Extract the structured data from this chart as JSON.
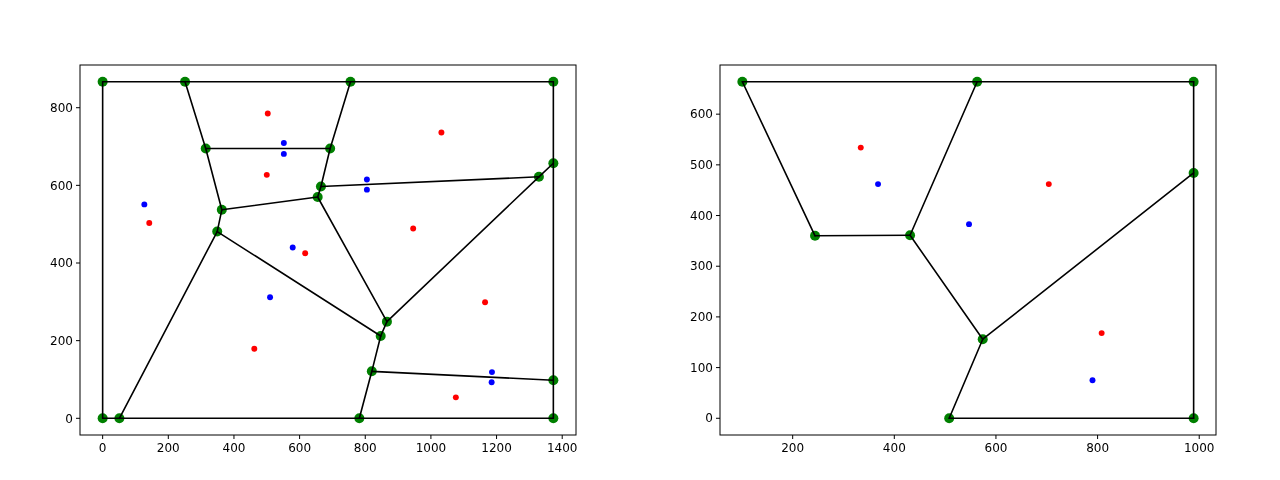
{
  "chart_data": [
    {
      "type": "scatter",
      "xlim": [
        -69,
        1442
      ],
      "ylim": [
        -43,
        910
      ],
      "xticks": [
        0,
        200,
        400,
        600,
        800,
        1000,
        1200,
        1400
      ],
      "yticks": [
        0,
        200,
        400,
        600,
        800
      ],
      "grid": false,
      "series": [
        {
          "marker": "circle",
          "color": "#008000",
          "x": [
            0,
            251,
            755,
            1373,
            314,
            693,
            1373,
            1329,
            665,
            655,
            363,
            349,
            866,
            847,
            820,
            1373,
            0,
            51,
            782,
            1373
          ],
          "values": [
            867,
            867,
            867,
            867,
            695,
            695,
            657,
            622,
            597,
            570,
            537,
            481,
            249,
            212,
            121,
            98,
            0,
            0,
            0,
            0
          ],
          "sizes": [
            1,
            1,
            1,
            1,
            1,
            1,
            1,
            1,
            1,
            1,
            1,
            1,
            1,
            1,
            1,
            1,
            1,
            1,
            1,
            1
          ]
        },
        {
          "type": "line",
          "color": "#000000",
          "x": [
            0,
            1373
          ],
          "values": [
            867,
            867
          ]
        },
        {
          "type": "line",
          "color": "#000000",
          "x": [
            0,
            0
          ],
          "values": [
            867,
            0
          ]
        },
        {
          "type": "line",
          "color": "#000000",
          "x": [
            1373,
            1373
          ],
          "values": [
            867,
            0
          ]
        },
        {
          "type": "line",
          "color": "#000000",
          "x": [
            0,
            1373
          ],
          "values": [
            0,
            0
          ]
        },
        {
          "type": "line",
          "color": "#000000",
          "x": [
            251,
            314
          ],
          "values": [
            867,
            695
          ]
        },
        {
          "type": "line",
          "color": "#000000",
          "x": [
            314,
            363
          ],
          "values": [
            695,
            537
          ]
        },
        {
          "type": "line",
          "color": "#000000",
          "x": [
            314,
            693
          ],
          "values": [
            695,
            695
          ]
        },
        {
          "type": "line",
          "color": "#000000",
          "x": [
            755,
            693
          ],
          "values": [
            867,
            695
          ]
        },
        {
          "type": "line",
          "color": "#000000",
          "x": [
            693,
            665
          ],
          "values": [
            695,
            597
          ]
        },
        {
          "type": "line",
          "color": "#000000",
          "x": [
            665,
            655
          ],
          "values": [
            597,
            570
          ]
        },
        {
          "type": "line",
          "color": "#000000",
          "x": [
            665,
            1329
          ],
          "values": [
            597,
            622
          ]
        },
        {
          "type": "line",
          "color": "#000000",
          "x": [
            866,
            1329
          ],
          "values": [
            249,
            622
          ]
        },
        {
          "type": "line",
          "color": "#000000",
          "x": [
            1329,
            1373
          ],
          "values": [
            622,
            657
          ]
        },
        {
          "type": "line",
          "color": "#000000",
          "x": [
            655,
            363
          ],
          "values": [
            570,
            537
          ]
        },
        {
          "type": "line",
          "color": "#000000",
          "x": [
            363,
            349
          ],
          "values": [
            537,
            481
          ]
        },
        {
          "type": "line",
          "color": "#000000",
          "x": [
            655,
            866
          ],
          "values": [
            570,
            249
          ]
        },
        {
          "type": "line",
          "color": "#000000",
          "x": [
            349,
            847
          ],
          "values": [
            481,
            212
          ]
        },
        {
          "type": "line",
          "color": "#000000",
          "x": [
            349,
            51
          ],
          "values": [
            481,
            0
          ]
        },
        {
          "type": "line",
          "color": "#000000",
          "x": [
            866,
            847
          ],
          "values": [
            249,
            212
          ]
        },
        {
          "type": "line",
          "color": "#000000",
          "x": [
            847,
            820
          ],
          "values": [
            212,
            121
          ]
        },
        {
          "type": "line",
          "color": "#000000",
          "x": [
            820,
            782
          ],
          "values": [
            121,
            0
          ]
        },
        {
          "type": "line",
          "color": "#000000",
          "x": [
            820,
            1373
          ],
          "values": [
            121,
            98
          ]
        },
        {
          "marker": "circle",
          "color": "#ff0000",
          "x": [
            503,
            500,
            142,
            617,
            1032,
            946,
            1165,
            462,
            1076
          ],
          "values": [
            785,
            627,
            503,
            425,
            736,
            489,
            299,
            179,
            54
          ],
          "sizes": [
            0.35,
            0.35,
            0.35,
            0.35,
            0.35,
            0.35,
            0.35,
            0.35,
            0.35
          ]
        },
        {
          "marker": "circle",
          "color": "#0000ff",
          "x": [
            552,
            552,
            805,
            805,
            127,
            579,
            510,
            1186,
            1185
          ],
          "values": [
            709,
            681,
            615,
            589,
            551,
            440,
            312,
            119,
            93
          ],
          "sizes": [
            0.35,
            0.35,
            0.35,
            0.35,
            0.35,
            0.35,
            0.35,
            0.35,
            0.35
          ]
        }
      ]
    },
    {
      "type": "scatter",
      "xlim": [
        57,
        1033
      ],
      "ylim": [
        -33,
        697
      ],
      "xticks": [
        200,
        400,
        600,
        800,
        1000
      ],
      "yticks": [
        0,
        100,
        200,
        300,
        400,
        500,
        600
      ],
      "grid": false,
      "series": [
        {
          "marker": "circle",
          "color": "#008000",
          "x": [
            101,
            563,
            989,
            989,
            244,
            431,
            574,
            508,
            989
          ],
          "values": [
            664,
            664,
            664,
            484,
            360,
            361,
            156,
            0,
            0
          ],
          "sizes": [
            1,
            1,
            1,
            1,
            1,
            1,
            1,
            1,
            1
          ]
        },
        {
          "type": "line",
          "color": "#000000",
          "x": [
            101,
            989
          ],
          "values": [
            664,
            664
          ]
        },
        {
          "type": "line",
          "color": "#000000",
          "x": [
            989,
            989
          ],
          "values": [
            664,
            0
          ]
        },
        {
          "type": "line",
          "color": "#000000",
          "x": [
            508,
            989
          ],
          "values": [
            0,
            0
          ]
        },
        {
          "type": "line",
          "color": "#000000",
          "x": [
            101,
            244
          ],
          "values": [
            664,
            360
          ]
        },
        {
          "type": "line",
          "color": "#000000",
          "x": [
            244,
            431
          ],
          "values": [
            360,
            361
          ]
        },
        {
          "type": "line",
          "color": "#000000",
          "x": [
            431,
            563
          ],
          "values": [
            361,
            664
          ]
        },
        {
          "type": "line",
          "color": "#000000",
          "x": [
            431,
            574
          ],
          "values": [
            361,
            156
          ]
        },
        {
          "type": "line",
          "color": "#000000",
          "x": [
            574,
            989
          ],
          "values": [
            156,
            484
          ]
        },
        {
          "type": "line",
          "color": "#000000",
          "x": [
            574,
            508
          ],
          "values": [
            156,
            0
          ]
        },
        {
          "marker": "circle",
          "color": "#ff0000",
          "x": [
            334,
            704,
            808
          ],
          "values": [
            534,
            462,
            168
          ],
          "sizes": [
            0.35,
            0.35,
            0.35
          ]
        },
        {
          "marker": "circle",
          "color": "#0000ff",
          "x": [
            368,
            547,
            790
          ],
          "values": [
            462,
            383,
            75
          ],
          "sizes": [
            0.35,
            0.35,
            0.35
          ]
        }
      ]
    }
  ]
}
